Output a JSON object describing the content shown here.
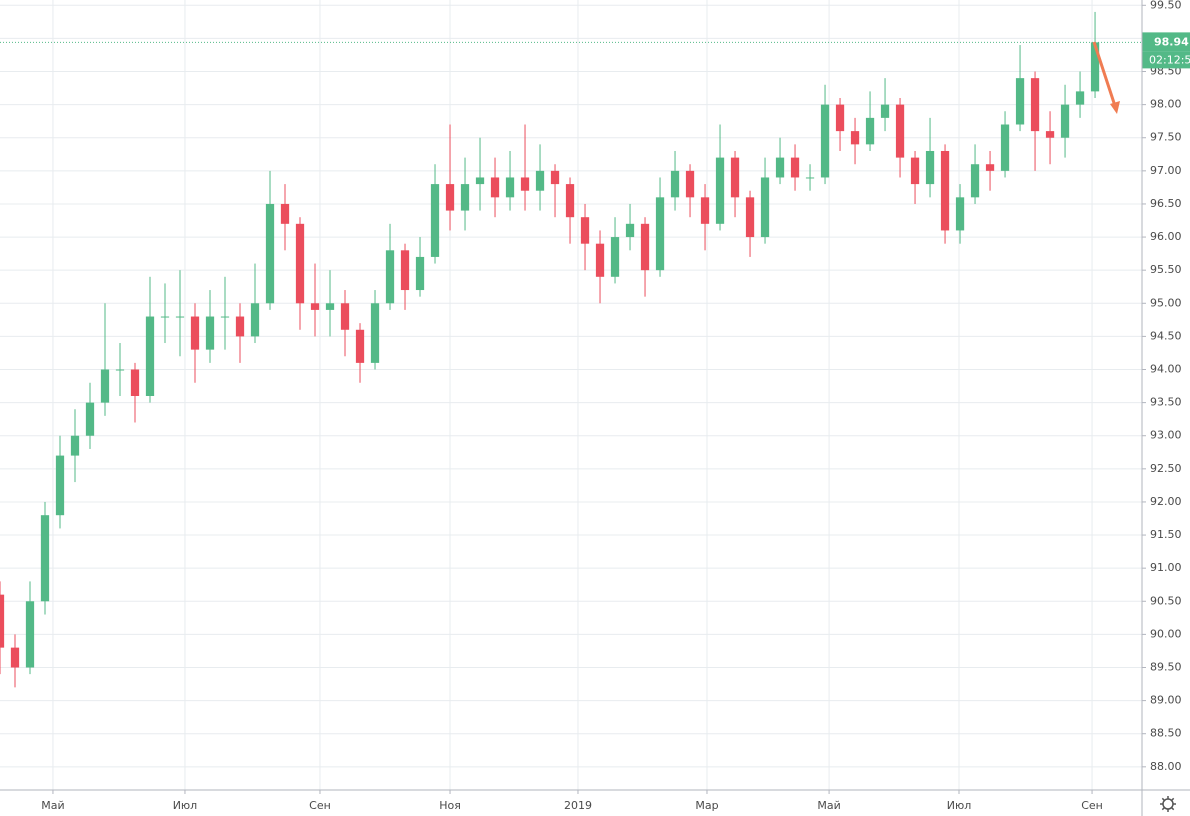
{
  "chart_data": {
    "type": "candlestick",
    "x": [
      0,
      1,
      2,
      3,
      4,
      5,
      6,
      7,
      8,
      9,
      10,
      11,
      12,
      13,
      14,
      15,
      16,
      17,
      18,
      19,
      20,
      21,
      22,
      23,
      24,
      25,
      26,
      27,
      28,
      29,
      30,
      31,
      32,
      33,
      34,
      35,
      36,
      37,
      38,
      39,
      40,
      41,
      42,
      43,
      44,
      45,
      46,
      47,
      48,
      49,
      50,
      51,
      52,
      53,
      54,
      55,
      56,
      57,
      58,
      59,
      60,
      61,
      62,
      63,
      64,
      65,
      66,
      67,
      68,
      69,
      70,
      71,
      72,
      73
    ],
    "open": [
      90.6,
      89.8,
      89.5,
      90.5,
      91.8,
      92.7,
      93.0,
      93.5,
      94.0,
      94.0,
      93.6,
      94.8,
      94.8,
      94.8,
      94.3,
      94.8,
      94.8,
      94.5,
      95.0,
      96.5,
      96.2,
      95.0,
      94.9,
      95.0,
      94.6,
      94.1,
      95.0,
      95.8,
      95.2,
      95.7,
      96.8,
      96.4,
      96.8,
      96.9,
      96.6,
      96.9,
      96.7,
      97.0,
      96.8,
      96.3,
      95.9,
      95.4,
      96.0,
      96.2,
      95.5,
      96.6,
      97.0,
      96.6,
      96.2,
      97.2,
      96.6,
      96.0,
      96.9,
      97.2,
      96.9,
      96.9,
      98.0,
      97.6,
      97.4,
      97.8,
      98.0,
      97.2,
      96.8,
      97.3,
      96.1,
      96.6,
      97.1,
      97.0,
      97.7,
      98.4,
      97.6,
      97.5,
      98.0,
      98.2
    ],
    "high": [
      90.8,
      90.0,
      90.8,
      92.0,
      93.0,
      93.4,
      93.8,
      95.0,
      94.4,
      94.1,
      95.4,
      95.3,
      95.5,
      95.0,
      95.2,
      95.4,
      95.0,
      95.6,
      97.0,
      96.8,
      96.3,
      95.6,
      95.5,
      95.2,
      94.7,
      95.2,
      96.2,
      95.9,
      96.0,
      97.1,
      97.7,
      97.2,
      97.5,
      97.2,
      97.3,
      97.7,
      97.4,
      97.1,
      96.9,
      96.5,
      96.1,
      96.3,
      96.5,
      96.3,
      96.9,
      97.3,
      97.1,
      96.8,
      97.7,
      97.3,
      96.7,
      97.2,
      97.5,
      97.4,
      97.1,
      98.3,
      98.1,
      97.8,
      98.2,
      98.4,
      98.1,
      97.3,
      97.8,
      97.4,
      96.8,
      97.4,
      97.3,
      97.9,
      98.9,
      98.5,
      97.9,
      98.3,
      98.5,
      99.4
    ],
    "low": [
      89.4,
      89.2,
      89.4,
      90.3,
      91.6,
      92.3,
      92.8,
      93.3,
      93.6,
      93.2,
      93.5,
      94.4,
      94.2,
      93.8,
      94.1,
      94.3,
      94.1,
      94.4,
      94.9,
      95.8,
      94.6,
      94.5,
      94.5,
      94.2,
      93.8,
      94.0,
      94.9,
      94.9,
      95.1,
      95.6,
      96.1,
      96.1,
      96.4,
      96.3,
      96.4,
      96.4,
      96.4,
      96.3,
      95.9,
      95.5,
      95.0,
      95.3,
      95.8,
      95.1,
      95.4,
      96.4,
      96.3,
      95.8,
      96.1,
      96.3,
      95.7,
      95.9,
      96.8,
      96.7,
      96.7,
      96.8,
      97.3,
      97.1,
      97.3,
      97.6,
      96.9,
      96.5,
      96.6,
      95.9,
      95.9,
      96.5,
      96.7,
      96.9,
      97.6,
      97.0,
      97.1,
      97.2,
      97.8,
      98.1
    ],
    "close": [
      89.8,
      89.5,
      90.5,
      91.8,
      92.7,
      93.0,
      93.5,
      94.0,
      94.0,
      93.6,
      94.8,
      94.8,
      94.8,
      94.3,
      94.8,
      94.8,
      94.5,
      95.0,
      96.5,
      96.2,
      95.0,
      94.9,
      95.0,
      94.6,
      94.1,
      95.0,
      95.8,
      95.2,
      95.7,
      96.8,
      96.4,
      96.8,
      96.9,
      96.6,
      96.9,
      96.7,
      97.0,
      96.8,
      96.3,
      95.9,
      95.4,
      96.0,
      96.2,
      95.5,
      96.6,
      97.0,
      96.6,
      96.2,
      97.2,
      96.6,
      96.0,
      96.9,
      97.2,
      96.9,
      96.9,
      98.0,
      97.6,
      97.4,
      97.8,
      98.0,
      97.2,
      96.8,
      97.3,
      96.1,
      96.6,
      97.1,
      97.0,
      97.7,
      98.4,
      97.6,
      97.5,
      98.0,
      98.2,
      98.94
    ],
    "up_color": "#53b987",
    "down_color": "#eb4d5c",
    "last_price": 98.94,
    "countdown": "02:12:5",
    "last_price_color": "#53b987",
    "xlim": [
      0,
      76.13
    ],
    "xticks": [
      {
        "value": 3.53,
        "label": "Май"
      },
      {
        "value": 12.33,
        "label": "Июл"
      },
      {
        "value": 21.33,
        "label": "Сен"
      },
      {
        "value": 30,
        "label": "Ноя"
      },
      {
        "value": 38.53,
        "label": "2019"
      },
      {
        "value": 47.13,
        "label": "Мар"
      },
      {
        "value": 55.27,
        "label": "Май"
      },
      {
        "value": 63.93,
        "label": "Июл"
      },
      {
        "value": 72.8,
        "label": "Сен"
      }
    ],
    "ylim": [
      87.65,
      99.58
    ],
    "yticks": [
      {
        "value": 88,
        "label": "88.00"
      },
      {
        "value": 88.5,
        "label": "88.50"
      },
      {
        "value": 89,
        "label": "89.00"
      },
      {
        "value": 89.5,
        "label": "89.50"
      },
      {
        "value": 90,
        "label": "90.00"
      },
      {
        "value": 90.5,
        "label": "90.50"
      },
      {
        "value": 91,
        "label": "91.00"
      },
      {
        "value": 91.5,
        "label": "91.50"
      },
      {
        "value": 92,
        "label": "92.00"
      },
      {
        "value": 92.5,
        "label": "92.50"
      },
      {
        "value": 93,
        "label": "93.00"
      },
      {
        "value": 93.5,
        "label": "93.50"
      },
      {
        "value": 94,
        "label": "94.00"
      },
      {
        "value": 94.5,
        "label": "94.50"
      },
      {
        "value": 95,
        "label": "95.00"
      },
      {
        "value": 95.5,
        "label": "95.50"
      },
      {
        "value": 96,
        "label": "96.00"
      },
      {
        "value": 96.5,
        "label": "96.50"
      },
      {
        "value": 97,
        "label": "97.00"
      },
      {
        "value": 97.5,
        "label": "97.50"
      },
      {
        "value": 98,
        "label": "98.00"
      },
      {
        "value": 98.5,
        "label": "98.50"
      },
      {
        "value": 99,
        "label": "99.00"
      },
      {
        "value": 99.5,
        "label": "99.50"
      }
    ],
    "grid": true
  }
}
